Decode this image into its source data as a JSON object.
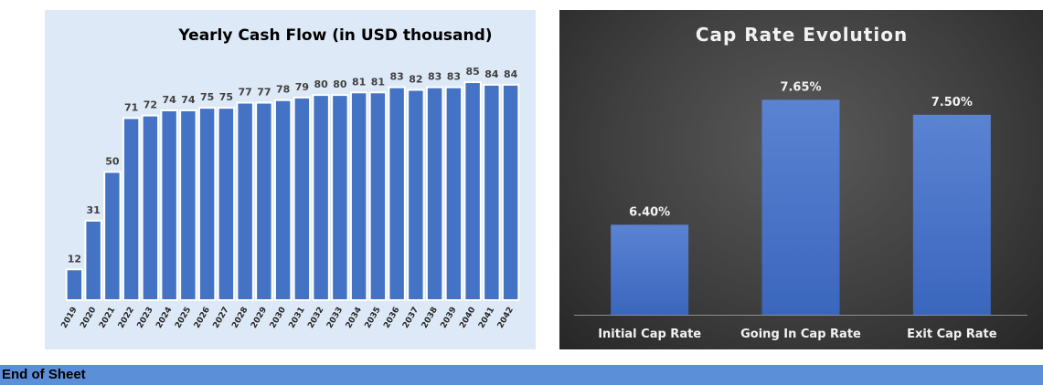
{
  "chart_data": [
    {
      "type": "bar",
      "title": "Yearly Cash Flow (in USD thousand)",
      "categories": [
        "2019",
        "2020",
        "2021",
        "2022",
        "2023",
        "2024",
        "2025",
        "2026",
        "2027",
        "2028",
        "2029",
        "2030",
        "2031",
        "2032",
        "2033",
        "2034",
        "2035",
        "2036",
        "2037",
        "2038",
        "2039",
        "2040",
        "2041",
        "2042"
      ],
      "values": [
        12,
        31,
        50,
        71,
        72,
        74,
        74,
        75,
        75,
        77,
        77,
        78,
        79,
        80,
        80,
        81,
        81,
        83,
        82,
        83,
        83,
        85,
        84,
        84
      ],
      "ylim": [
        0,
        90
      ],
      "grid": false,
      "bar_color": "#4472c4",
      "background": "#dde9f6"
    },
    {
      "type": "bar",
      "title": "Cap Rate Evolution",
      "categories": [
        "Initial Cap Rate",
        "Going In Cap Rate",
        "Exit Cap Rate"
      ],
      "values": [
        6.4,
        7.65,
        7.5
      ],
      "value_labels": [
        "6.40%",
        "7.65%",
        "7.50%"
      ],
      "ylim": [
        5.5,
        8.0
      ],
      "grid": false,
      "bar_color": "#4472c4",
      "background": "#3f3f3f"
    }
  ],
  "footer": {
    "label": "End of Sheet",
    "color": "#5b8fd8"
  }
}
